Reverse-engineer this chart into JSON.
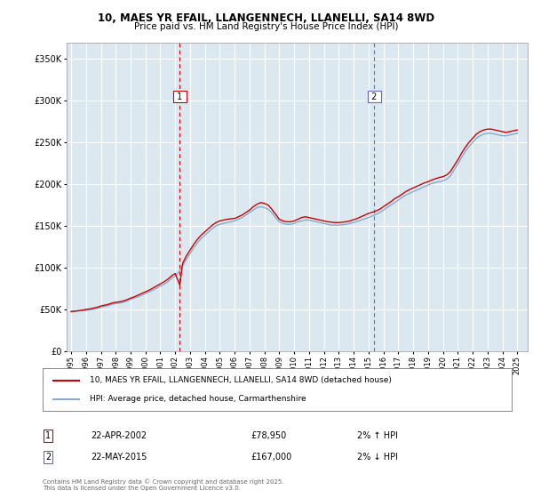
{
  "title": "10, MAES YR EFAIL, LLANGENNECH, LLANELLI, SA14 8WD",
  "subtitle": "Price paid vs. HM Land Registry's House Price Index (HPI)",
  "ylabel_ticks": [
    "£0",
    "£50K",
    "£100K",
    "£150K",
    "£200K",
    "£250K",
    "£300K",
    "£350K"
  ],
  "ytick_values": [
    0,
    50000,
    100000,
    150000,
    200000,
    250000,
    300000,
    350000
  ],
  "ylim": [
    0,
    370000
  ],
  "xlim_start": 1994.7,
  "xlim_end": 2025.7,
  "transaction1_x": 2002.31,
  "transaction2_x": 2015.38,
  "legend_line1": "10, MAES YR EFAIL, LLANGENNECH, LLANELLI, SA14 8WD (detached house)",
  "legend_line2": "HPI: Average price, detached house, Carmarthenshire",
  "row1_num": "1",
  "row1_date": "22-APR-2002",
  "row1_price": "£78,950",
  "row1_hpi": "2% ↑ HPI",
  "row2_num": "2",
  "row2_date": "22-MAY-2015",
  "row2_price": "£167,000",
  "row2_hpi": "2% ↓ HPI",
  "footer": "Contains HM Land Registry data © Crown copyright and database right 2025.\nThis data is licensed under the Open Government Licence v3.0.",
  "line_color_price": "#cc0000",
  "line_color_hpi": "#88aacc",
  "vline_color1": "#cc0000",
  "vline_color2": "#6666cc",
  "box_color2": "#6666cc",
  "bg_color": "#dce8f0",
  "grid_color": "#ffffff",
  "hpi_data": [
    [
      1995.0,
      47000
    ],
    [
      1995.25,
      47500
    ],
    [
      1995.5,
      48000
    ],
    [
      1995.75,
      48500
    ],
    [
      1996.0,
      49000
    ],
    [
      1996.25,
      49500
    ],
    [
      1996.5,
      50000
    ],
    [
      1996.75,
      51000
    ],
    [
      1997.0,
      52500
    ],
    [
      1997.25,
      53500
    ],
    [
      1997.5,
      54500
    ],
    [
      1997.75,
      56000
    ],
    [
      1998.0,
      57000
    ],
    [
      1998.25,
      57500
    ],
    [
      1998.5,
      58500
    ],
    [
      1998.75,
      60000
    ],
    [
      1999.0,
      62000
    ],
    [
      1999.25,
      63500
    ],
    [
      1999.5,
      65000
    ],
    [
      1999.75,
      67000
    ],
    [
      2000.0,
      69000
    ],
    [
      2000.25,
      71000
    ],
    [
      2000.5,
      73000
    ],
    [
      2000.75,
      75500
    ],
    [
      2001.0,
      78000
    ],
    [
      2001.25,
      80000
    ],
    [
      2001.5,
      83000
    ],
    [
      2001.75,
      87000
    ],
    [
      2002.0,
      90000
    ],
    [
      2002.25,
      95000
    ],
    [
      2002.5,
      102000
    ],
    [
      2002.75,
      110000
    ],
    [
      2003.0,
      117000
    ],
    [
      2003.25,
      124000
    ],
    [
      2003.5,
      130000
    ],
    [
      2003.75,
      135000
    ],
    [
      2004.0,
      139000
    ],
    [
      2004.25,
      143000
    ],
    [
      2004.5,
      147000
    ],
    [
      2004.75,
      150000
    ],
    [
      2005.0,
      152000
    ],
    [
      2005.25,
      153000
    ],
    [
      2005.5,
      154000
    ],
    [
      2005.75,
      155000
    ],
    [
      2006.0,
      156000
    ],
    [
      2006.25,
      158000
    ],
    [
      2006.5,
      160000
    ],
    [
      2006.75,
      163000
    ],
    [
      2007.0,
      166000
    ],
    [
      2007.25,
      169000
    ],
    [
      2007.5,
      172000
    ],
    [
      2007.75,
      173000
    ],
    [
      2008.0,
      172000
    ],
    [
      2008.25,
      170000
    ],
    [
      2008.5,
      166000
    ],
    [
      2008.75,
      160000
    ],
    [
      2009.0,
      155000
    ],
    [
      2009.25,
      153000
    ],
    [
      2009.5,
      152000
    ],
    [
      2009.75,
      152000
    ],
    [
      2010.0,
      153000
    ],
    [
      2010.25,
      155000
    ],
    [
      2010.5,
      156000
    ],
    [
      2010.75,
      157000
    ],
    [
      2011.0,
      157000
    ],
    [
      2011.25,
      156000
    ],
    [
      2011.5,
      155000
    ],
    [
      2011.75,
      154000
    ],
    [
      2012.0,
      153000
    ],
    [
      2012.25,
      152000
    ],
    [
      2012.5,
      151000
    ],
    [
      2012.75,
      151000
    ],
    [
      2013.0,
      151000
    ],
    [
      2013.25,
      151500
    ],
    [
      2013.5,
      152000
    ],
    [
      2013.75,
      153000
    ],
    [
      2014.0,
      154000
    ],
    [
      2014.25,
      155500
    ],
    [
      2014.5,
      157000
    ],
    [
      2014.75,
      158500
    ],
    [
      2015.0,
      160000
    ],
    [
      2015.25,
      162000
    ],
    [
      2015.5,
      164000
    ],
    [
      2015.75,
      166000
    ],
    [
      2016.0,
      169000
    ],
    [
      2016.25,
      172000
    ],
    [
      2016.5,
      175000
    ],
    [
      2016.75,
      178000
    ],
    [
      2017.0,
      181000
    ],
    [
      2017.25,
      184000
    ],
    [
      2017.5,
      187000
    ],
    [
      2017.75,
      189000
    ],
    [
      2018.0,
      191000
    ],
    [
      2018.25,
      193000
    ],
    [
      2018.5,
      195000
    ],
    [
      2018.75,
      197000
    ],
    [
      2019.0,
      199000
    ],
    [
      2019.25,
      201000
    ],
    [
      2019.5,
      202000
    ],
    [
      2019.75,
      203000
    ],
    [
      2020.0,
      204000
    ],
    [
      2020.25,
      206000
    ],
    [
      2020.5,
      210000
    ],
    [
      2020.75,
      217000
    ],
    [
      2021.0,
      224000
    ],
    [
      2021.25,
      232000
    ],
    [
      2021.5,
      239000
    ],
    [
      2021.75,
      245000
    ],
    [
      2022.0,
      250000
    ],
    [
      2022.25,
      255000
    ],
    [
      2022.5,
      258000
    ],
    [
      2022.75,
      260000
    ],
    [
      2023.0,
      261000
    ],
    [
      2023.25,
      261000
    ],
    [
      2023.5,
      260000
    ],
    [
      2023.75,
      259000
    ],
    [
      2024.0,
      258000
    ],
    [
      2024.25,
      258000
    ],
    [
      2024.5,
      259000
    ],
    [
      2024.75,
      260000
    ],
    [
      2025.0,
      261000
    ]
  ],
  "price_data": [
    [
      1995.0,
      47500
    ],
    [
      1995.25,
      48000
    ],
    [
      1995.5,
      48500
    ],
    [
      1995.75,
      49000
    ],
    [
      1996.0,
      50000
    ],
    [
      1996.25,
      50500
    ],
    [
      1996.5,
      51500
    ],
    [
      1996.75,
      52500
    ],
    [
      1997.0,
      54000
    ],
    [
      1997.25,
      55000
    ],
    [
      1997.5,
      56000
    ],
    [
      1997.75,
      57500
    ],
    [
      1998.0,
      58500
    ],
    [
      1998.25,
      59000
    ],
    [
      1998.5,
      60000
    ],
    [
      1998.75,
      61500
    ],
    [
      1999.0,
      63500
    ],
    [
      1999.25,
      65000
    ],
    [
      1999.5,
      67000
    ],
    [
      1999.75,
      69000
    ],
    [
      2000.0,
      71000
    ],
    [
      2000.25,
      73000
    ],
    [
      2000.5,
      75500
    ],
    [
      2000.75,
      78000
    ],
    [
      2001.0,
      80500
    ],
    [
      2001.25,
      83000
    ],
    [
      2001.5,
      86000
    ],
    [
      2001.75,
      90000
    ],
    [
      2002.0,
      93000
    ],
    [
      2002.31,
      78950
    ],
    [
      2002.5,
      105000
    ],
    [
      2002.75,
      114000
    ],
    [
      2003.0,
      121000
    ],
    [
      2003.25,
      128000
    ],
    [
      2003.5,
      134000
    ],
    [
      2003.75,
      139000
    ],
    [
      2004.0,
      143000
    ],
    [
      2004.25,
      147000
    ],
    [
      2004.5,
      151000
    ],
    [
      2004.75,
      154000
    ],
    [
      2005.0,
      156000
    ],
    [
      2005.25,
      157000
    ],
    [
      2005.5,
      158000
    ],
    [
      2005.75,
      158500
    ],
    [
      2006.0,
      159000
    ],
    [
      2006.25,
      161000
    ],
    [
      2006.5,
      163000
    ],
    [
      2006.75,
      166000
    ],
    [
      2007.0,
      169000
    ],
    [
      2007.25,
      173000
    ],
    [
      2007.5,
      176000
    ],
    [
      2007.75,
      178000
    ],
    [
      2008.0,
      177000
    ],
    [
      2008.25,
      175000
    ],
    [
      2008.5,
      170000
    ],
    [
      2008.75,
      164000
    ],
    [
      2009.0,
      158000
    ],
    [
      2009.25,
      156000
    ],
    [
      2009.5,
      155000
    ],
    [
      2009.75,
      155000
    ],
    [
      2010.0,
      156000
    ],
    [
      2010.25,
      158000
    ],
    [
      2010.5,
      160000
    ],
    [
      2010.75,
      161000
    ],
    [
      2011.0,
      160000
    ],
    [
      2011.25,
      159000
    ],
    [
      2011.5,
      158000
    ],
    [
      2011.75,
      157000
    ],
    [
      2012.0,
      156000
    ],
    [
      2012.25,
      155000
    ],
    [
      2012.5,
      154500
    ],
    [
      2012.75,
      154000
    ],
    [
      2013.0,
      154000
    ],
    [
      2013.25,
      154500
    ],
    [
      2013.5,
      155000
    ],
    [
      2013.75,
      156000
    ],
    [
      2014.0,
      157500
    ],
    [
      2014.25,
      159000
    ],
    [
      2014.5,
      161000
    ],
    [
      2014.75,
      163000
    ],
    [
      2015.0,
      165000
    ],
    [
      2015.38,
      167000
    ],
    [
      2015.5,
      168000
    ],
    [
      2015.75,
      170000
    ],
    [
      2016.0,
      173000
    ],
    [
      2016.25,
      176000
    ],
    [
      2016.5,
      179000
    ],
    [
      2016.75,
      182500
    ],
    [
      2017.0,
      185000
    ],
    [
      2017.25,
      188000
    ],
    [
      2017.5,
      191000
    ],
    [
      2017.75,
      193500
    ],
    [
      2018.0,
      195500
    ],
    [
      2018.25,
      197500
    ],
    [
      2018.5,
      199500
    ],
    [
      2018.75,
      201500
    ],
    [
      2019.0,
      203000
    ],
    [
      2019.25,
      205000
    ],
    [
      2019.5,
      206500
    ],
    [
      2019.75,
      208000
    ],
    [
      2020.0,
      209000
    ],
    [
      2020.25,
      211000
    ],
    [
      2020.5,
      215000
    ],
    [
      2020.75,
      222000
    ],
    [
      2021.0,
      229000
    ],
    [
      2021.25,
      237000
    ],
    [
      2021.5,
      244000
    ],
    [
      2021.75,
      250000
    ],
    [
      2022.0,
      255000
    ],
    [
      2022.25,
      260000
    ],
    [
      2022.5,
      263000
    ],
    [
      2022.75,
      265000
    ],
    [
      2023.0,
      266000
    ],
    [
      2023.25,
      266000
    ],
    [
      2023.5,
      265000
    ],
    [
      2023.75,
      264000
    ],
    [
      2024.0,
      263000
    ],
    [
      2024.25,
      262000
    ],
    [
      2024.5,
      263000
    ],
    [
      2024.75,
      264000
    ],
    [
      2025.0,
      265000
    ]
  ],
  "xtick_years": [
    1995,
    1996,
    1997,
    1998,
    1999,
    2000,
    2001,
    2002,
    2003,
    2004,
    2005,
    2006,
    2007,
    2008,
    2009,
    2010,
    2011,
    2012,
    2013,
    2014,
    2015,
    2016,
    2017,
    2018,
    2019,
    2020,
    2021,
    2022,
    2023,
    2024,
    2025
  ]
}
